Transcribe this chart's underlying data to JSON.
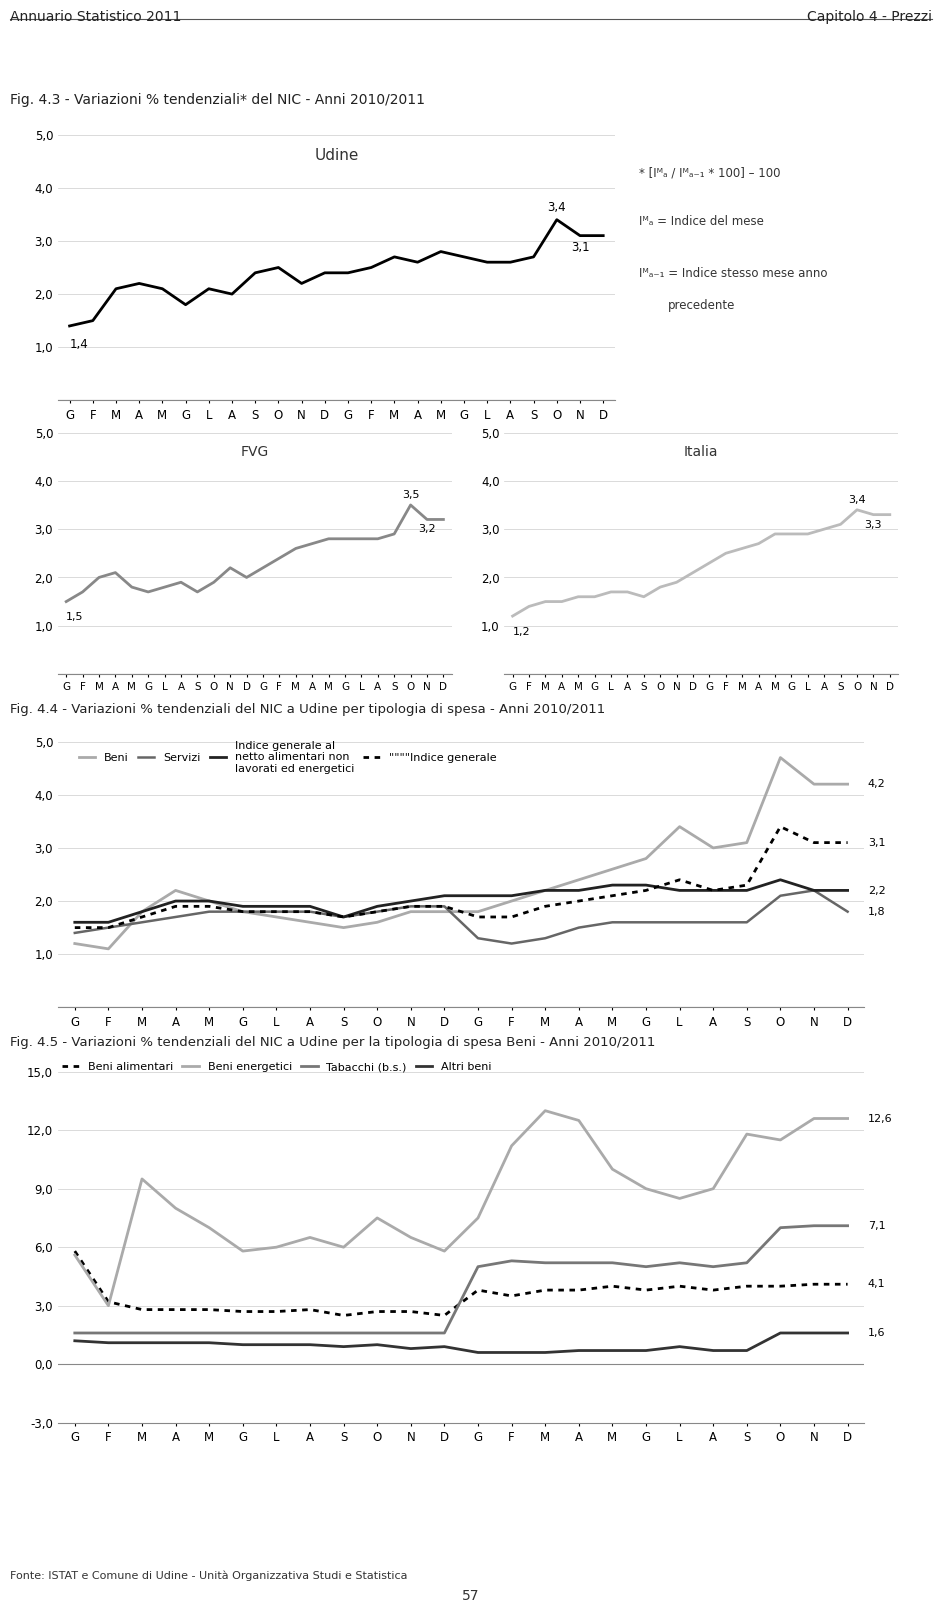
{
  "header_left": "Annuario Statistico 2011",
  "header_right": "Capitolo 4 - Prezzi",
  "fig3_title": "Fig. 4.3 - Variazioni % tendenziali* del NIC - Anni 2010/2011",
  "fig4_title": "Fig. 4.4 - Variazioni % tendenziali del NIC a Udine per tipologia di spesa - Anni 2010/2011",
  "fig5_title": "Fig. 4.5 - Variazioni % tendenziali del NIC a Udine per la tipologia di spesa Beni - Anni 2010/2011",
  "footer": "Fonte: ISTAT e Comune di Udine - Unità Organizzativa Studi e Statistica",
  "page_number": "57",
  "xtick_labels": [
    "G",
    "F",
    "M",
    "A",
    "M",
    "G",
    "L",
    "A",
    "S",
    "O",
    "N",
    "D",
    "G",
    "F",
    "M",
    "A",
    "M",
    "G",
    "L",
    "A",
    "S",
    "O",
    "N",
    "D"
  ],
  "udine_data": [
    1.4,
    1.5,
    2.1,
    2.2,
    2.1,
    1.8,
    2.1,
    2.0,
    2.4,
    2.5,
    2.2,
    2.4,
    2.4,
    2.5,
    2.7,
    2.6,
    2.8,
    2.7,
    2.6,
    2.6,
    2.7,
    3.4,
    3.1,
    3.1
  ],
  "udine_color": "#000000",
  "fvg_data": [
    1.5,
    1.7,
    2.0,
    2.1,
    1.8,
    1.7,
    1.8,
    1.9,
    1.7,
    1.9,
    2.2,
    2.0,
    2.2,
    2.4,
    2.6,
    2.7,
    2.8,
    2.8,
    2.8,
    2.8,
    2.9,
    3.5,
    3.2,
    3.2
  ],
  "fvg_color": "#888888",
  "italia_data": [
    1.2,
    1.4,
    1.5,
    1.5,
    1.6,
    1.6,
    1.7,
    1.7,
    1.6,
    1.8,
    1.9,
    2.1,
    2.3,
    2.5,
    2.6,
    2.7,
    2.9,
    2.9,
    2.9,
    3.0,
    3.1,
    3.4,
    3.3,
    3.3
  ],
  "italia_color": "#bbbbbb",
  "fig4_beni_data": [
    1.2,
    1.1,
    1.8,
    2.2,
    2.0,
    1.8,
    1.7,
    1.6,
    1.5,
    1.6,
    1.8,
    1.8,
    1.8,
    2.0,
    2.2,
    2.4,
    2.6,
    2.8,
    3.4,
    3.0,
    3.1,
    4.7,
    4.2,
    4.2
  ],
  "fig4_servizi_data": [
    1.4,
    1.5,
    1.6,
    1.7,
    1.8,
    1.8,
    1.8,
    1.8,
    1.7,
    1.8,
    1.9,
    1.9,
    1.3,
    1.2,
    1.3,
    1.5,
    1.6,
    1.6,
    1.6,
    1.6,
    1.6,
    2.1,
    2.2,
    1.8
  ],
  "fig4_indgen_al_data": [
    1.6,
    1.6,
    1.8,
    2.0,
    2.0,
    1.9,
    1.9,
    1.9,
    1.7,
    1.9,
    2.0,
    2.1,
    2.1,
    2.1,
    2.2,
    2.2,
    2.3,
    2.3,
    2.2,
    2.2,
    2.2,
    2.4,
    2.2,
    2.2
  ],
  "fig4_indgen_data": [
    1.5,
    1.5,
    1.7,
    1.9,
    1.9,
    1.8,
    1.8,
    1.8,
    1.7,
    1.8,
    1.9,
    1.9,
    1.7,
    1.7,
    1.9,
    2.0,
    2.1,
    2.2,
    2.4,
    2.2,
    2.3,
    3.4,
    3.1,
    3.1
  ],
  "fig4_beni_color": "#aaaaaa",
  "fig4_servizi_color": "#666666",
  "fig4_indgen_al_color": "#222222",
  "fig4_indgen_color": "#000000",
  "fig5_beni_alim_data": [
    5.8,
    3.2,
    2.8,
    2.8,
    2.8,
    2.7,
    2.7,
    2.8,
    2.5,
    2.7,
    2.7,
    2.5,
    3.8,
    3.5,
    3.8,
    3.8,
    4.0,
    3.8,
    4.0,
    3.8,
    4.0,
    4.0,
    4.1,
    4.1
  ],
  "fig5_beni_energ_data": [
    5.6,
    3.0,
    9.5,
    8.0,
    7.0,
    5.8,
    6.0,
    6.5,
    6.0,
    7.5,
    6.5,
    5.8,
    7.5,
    11.2,
    13.0,
    12.5,
    10.0,
    9.0,
    8.5,
    9.0,
    11.8,
    11.5,
    12.6,
    12.6
  ],
  "fig5_tabacchi_data": [
    1.6,
    1.6,
    1.6,
    1.6,
    1.6,
    1.6,
    1.6,
    1.6,
    1.6,
    1.6,
    1.6,
    1.6,
    5.0,
    5.3,
    5.2,
    5.2,
    5.2,
    5.0,
    5.2,
    5.0,
    5.2,
    7.0,
    7.1,
    7.1
  ],
  "fig5_altri_beni_data": [
    1.2,
    1.1,
    1.1,
    1.1,
    1.1,
    1.0,
    1.0,
    1.0,
    0.9,
    1.0,
    0.8,
    0.9,
    0.6,
    0.6,
    0.6,
    0.7,
    0.7,
    0.7,
    0.9,
    0.7,
    0.7,
    1.6,
    1.6,
    1.6
  ],
  "fig5_beni_alim_color": "#000000",
  "fig5_beni_energ_color": "#aaaaaa",
  "fig5_tabacchi_color": "#777777",
  "fig5_altri_beni_color": "#333333",
  "background_color": "#ffffff"
}
